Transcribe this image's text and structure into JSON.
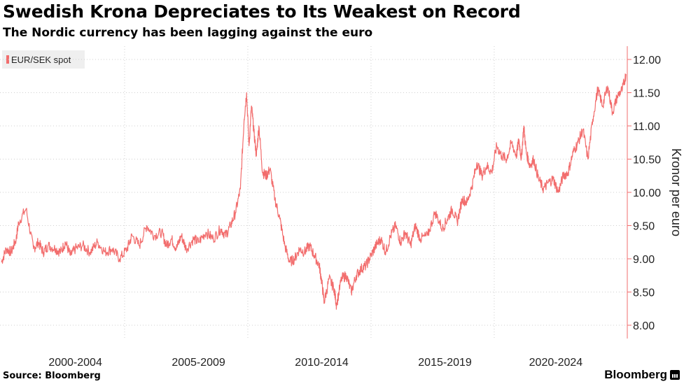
{
  "title": "Swedish Krona Depreciates to Its Weakest on Record",
  "subtitle": "The Nordic currency has been lagging against the euro",
  "source": "Source: Bloomberg",
  "brand": "Bloomberg",
  "colors": {
    "series": "#f26d6d",
    "axis": "#f26d6d",
    "grid": "#cfcfcf"
  },
  "chart_data": {
    "type": "line",
    "title": "Swedish Krona Depreciates to Its Weakest on Record",
    "subtitle": "The Nordic currency has been lagging against the euro",
    "ylabel": "Kronor per euro",
    "ylim": [
      7.8,
      12.2
    ],
    "xlim": [
      1999.0,
      2024.4
    ],
    "y_ticks": [
      "8.00",
      "8.50",
      "9.00",
      "9.50",
      "10.00",
      "10.50",
      "11.00",
      "11.50",
      "12.00"
    ],
    "x_tick_labels": [
      {
        "label": "2000-2004",
        "x": 2002.0
      },
      {
        "label": "2005-2009",
        "x": 2007.0
      },
      {
        "label": "2010-2014",
        "x": 2012.0
      },
      {
        "label": "2015-2019",
        "x": 2017.0
      },
      {
        "label": "2020-2024",
        "x": 2021.5
      }
    ],
    "x_gridlines": [
      2004.0,
      2009.0,
      2014.0,
      2019.0
    ],
    "grid": true,
    "legend_position": "top-left",
    "series": [
      {
        "name": "EUR/SEK spot",
        "x": [
          1999.0,
          1999.2,
          1999.4,
          1999.6,
          1999.7,
          2000.0,
          2000.3,
          2000.5,
          2000.7,
          2000.9,
          2001.2,
          2001.4,
          2001.6,
          2001.8,
          2002.0,
          2002.3,
          2002.6,
          2002.9,
          2003.2,
          2003.5,
          2003.8,
          2004.1,
          2004.3,
          2004.6,
          2004.9,
          2005.2,
          2005.5,
          2005.7,
          2005.9,
          2006.1,
          2006.3,
          2006.5,
          2006.8,
          2007.0,
          2007.3,
          2007.6,
          2007.9,
          2008.1,
          2008.3,
          2008.5,
          2008.7,
          2008.85,
          2008.95,
          2009.05,
          2009.15,
          2009.25,
          2009.35,
          2009.45,
          2009.6,
          2009.75,
          2009.9,
          2010.1,
          2010.3,
          2010.5,
          2010.7,
          2010.9,
          2011.1,
          2011.3,
          2011.5,
          2011.7,
          2011.9,
          2012.0,
          2012.1,
          2012.3,
          2012.5,
          2012.6,
          2012.8,
          2013.0,
          2013.2,
          2013.4,
          2013.6,
          2013.8,
          2014.0,
          2014.2,
          2014.4,
          2014.6,
          2014.8,
          2015.0,
          2015.2,
          2015.4,
          2015.6,
          2015.8,
          2016.0,
          2016.3,
          2016.6,
          2016.9,
          2017.1,
          2017.3,
          2017.5,
          2017.7,
          2017.9,
          2018.1,
          2018.3,
          2018.5,
          2018.7,
          2018.9,
          2019.1,
          2019.3,
          2019.5,
          2019.7,
          2019.9,
          2020.0,
          2020.1,
          2020.2,
          2020.3,
          2020.45,
          2020.6,
          2020.8,
          2021.0,
          2021.2,
          2021.4,
          2021.6,
          2021.8,
          2022.0,
          2022.2,
          2022.4,
          2022.6,
          2022.8,
          2023.0,
          2023.2,
          2023.4,
          2023.6,
          2023.8,
          2024.0,
          2024.2,
          2024.35
        ],
        "values": [
          8.95,
          9.15,
          9.1,
          9.3,
          9.55,
          9.75,
          9.15,
          9.25,
          9.1,
          9.2,
          9.15,
          9.1,
          9.25,
          9.05,
          9.15,
          9.2,
          9.1,
          9.25,
          9.1,
          9.15,
          9.0,
          9.15,
          9.35,
          9.2,
          9.5,
          9.35,
          9.4,
          9.2,
          9.3,
          9.15,
          9.35,
          9.15,
          9.3,
          9.25,
          9.4,
          9.3,
          9.45,
          9.35,
          9.5,
          9.7,
          10.05,
          11.1,
          11.5,
          10.7,
          11.3,
          10.9,
          10.55,
          11.0,
          10.3,
          10.25,
          10.35,
          9.9,
          9.6,
          9.2,
          8.95,
          9.0,
          9.15,
          9.1,
          9.2,
          9.05,
          8.9,
          8.65,
          8.35,
          8.7,
          8.55,
          8.3,
          8.7,
          8.75,
          8.5,
          8.75,
          8.85,
          8.9,
          9.05,
          9.2,
          9.3,
          9.1,
          9.35,
          9.5,
          9.25,
          9.4,
          9.2,
          9.5,
          9.3,
          9.35,
          9.7,
          9.45,
          9.6,
          9.75,
          9.55,
          9.9,
          9.85,
          10.1,
          10.45,
          10.25,
          10.4,
          10.3,
          10.7,
          10.55,
          10.5,
          10.75,
          10.55,
          10.8,
          10.5,
          11.0,
          10.6,
          10.4,
          10.5,
          10.2,
          10.05,
          10.15,
          10.2,
          10.0,
          10.25,
          10.3,
          10.6,
          10.75,
          10.95,
          10.5,
          11.1,
          11.55,
          11.3,
          11.6,
          11.2,
          11.45,
          11.55,
          11.78
        ]
      }
    ]
  }
}
